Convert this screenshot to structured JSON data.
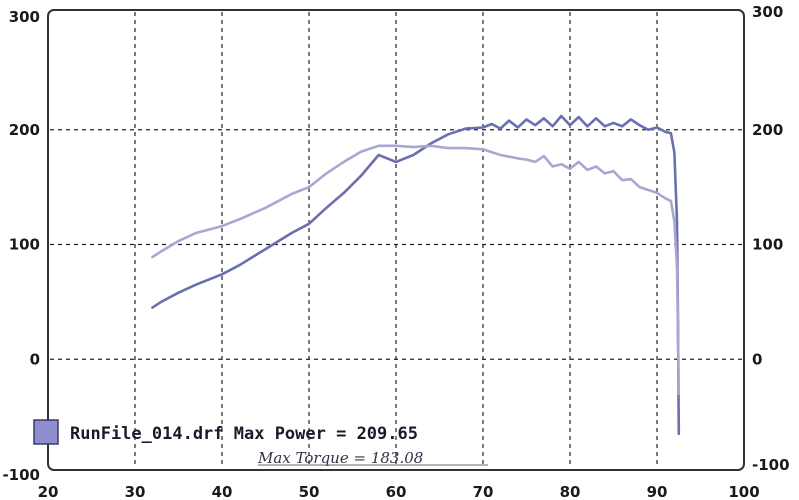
{
  "chart_data": {
    "type": "line",
    "title": "",
    "xlabel": "",
    "ylabel": "",
    "xlim": [
      20,
      100
    ],
    "ylim": [
      -100,
      300
    ],
    "y2lim": [
      -100,
      300
    ],
    "grid": true,
    "x_ticks": [
      20,
      30,
      40,
      50,
      60,
      70,
      80,
      90,
      100
    ],
    "y_ticks": [
      -100,
      0,
      100,
      200,
      300
    ],
    "y2_ticks": [
      -100,
      0,
      100,
      200,
      300
    ],
    "colors": {
      "power": "#6a6fb0",
      "torque": "#aaa6d2",
      "legend_swatch": "#8f8fcf"
    },
    "legend": {
      "placement": "bottom-left",
      "text": "RunFile_014.drf Max Power = 209.65"
    },
    "annotation": {
      "text": "Max Torque = 183.08"
    },
    "series": [
      {
        "key": "power",
        "x": [
          32,
          33,
          35,
          37,
          40,
          42,
          45,
          48,
          50,
          52,
          54,
          56,
          58,
          60,
          62,
          64,
          66,
          68,
          70,
          71,
          72,
          73,
          74,
          75,
          76,
          77,
          78,
          79,
          80,
          81,
          82,
          83,
          84,
          85,
          86,
          87,
          88,
          89,
          90,
          91,
          91.6,
          92.0,
          92.3,
          92.4,
          92.5
        ],
        "values": [
          45,
          50,
          58,
          65,
          74,
          82,
          96,
          110,
          118,
          132,
          145,
          160,
          178,
          172,
          178,
          188,
          196,
          201,
          202,
          205,
          201,
          208,
          202,
          209,
          204,
          210,
          203,
          212,
          204,
          211,
          203,
          210,
          203,
          206,
          203,
          209,
          204,
          200,
          202,
          198,
          197,
          180,
          120,
          40,
          -65
        ]
      },
      {
        "key": "torque",
        "x": [
          32,
          33,
          35,
          37,
          40,
          42,
          45,
          48,
          50,
          52,
          54,
          56,
          58,
          60,
          62,
          64,
          66,
          68,
          70,
          72,
          74,
          75,
          76,
          77,
          78,
          79,
          80,
          81,
          82,
          83,
          84,
          85,
          86,
          87,
          88,
          90,
          91,
          91.6,
          92.0,
          92.3,
          92.4,
          92.5
        ],
        "values": [
          89,
          94,
          103,
          110,
          116,
          122,
          132,
          144,
          150,
          162,
          172,
          181,
          186,
          186,
          185,
          186,
          184,
          184,
          183,
          178,
          175,
          174,
          172,
          177,
          168,
          170,
          166,
          172,
          165,
          168,
          162,
          164,
          156,
          157,
          150,
          145,
          140,
          138,
          120,
          80,
          30,
          -30
        ]
      }
    ]
  }
}
